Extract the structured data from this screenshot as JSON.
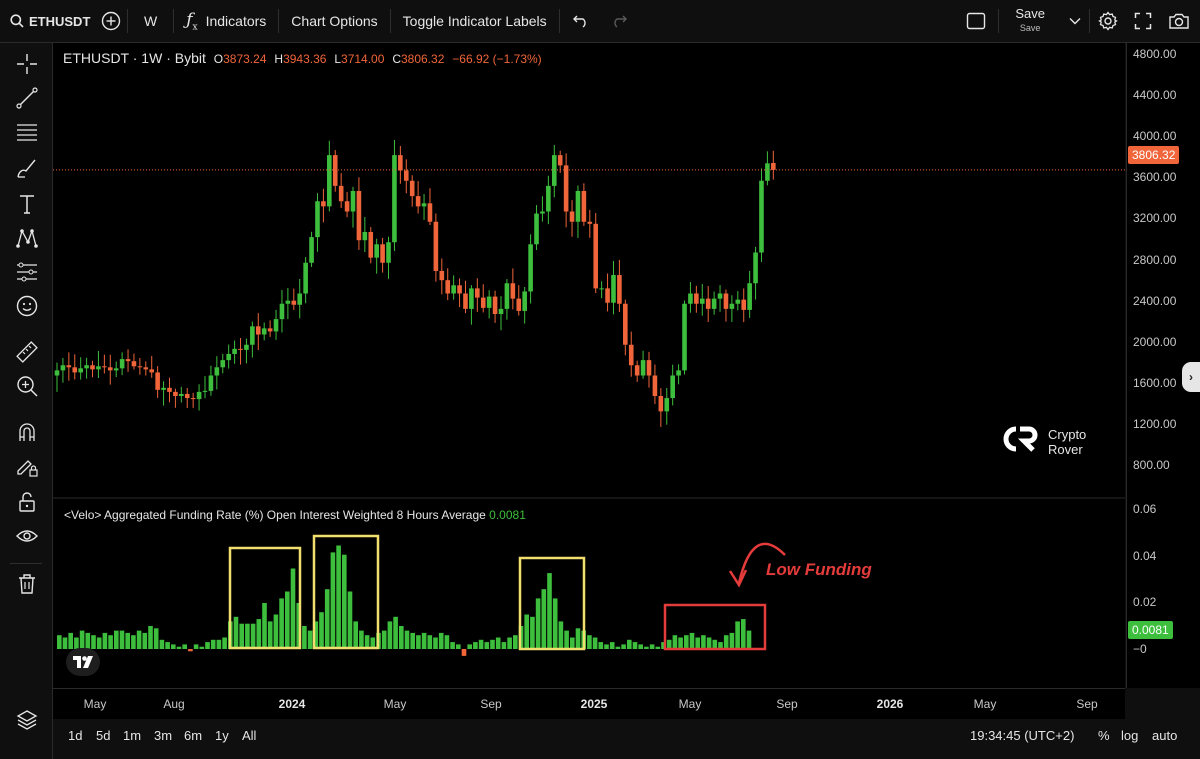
{
  "toolbar": {
    "symbol": "ETHUSDT",
    "interval": "W",
    "indicators_label": "Indicators",
    "chart_options_label": "Chart Options",
    "toggle_labels_label": "Toggle Indicator Labels",
    "save_label": "Save",
    "save_sub": "Save"
  },
  "legend": {
    "title": "ETHUSDT · 1W · Bybit",
    "o_label": "O",
    "o": "3873.24",
    "h_label": "H",
    "h": "3943.36",
    "l_label": "L",
    "l": "3714.00",
    "c_label": "C",
    "c": "3806.32",
    "change": "−66.92 (−1.73%)"
  },
  "indicator": {
    "label": "<Velo> Aggregated Funding Rate (%) Open Interest Weighted 8 Hours Average",
    "value": "0.0081"
  },
  "price_axis": {
    "ticks": [
      "4800.00",
      "4400.00",
      "4000.00",
      "3600.00",
      "3200.00",
      "2800.00",
      "2400.00",
      "2000.00",
      "1600.00",
      "1200.00",
      "800.00"
    ],
    "current_price": "3806.32",
    "ind_ticks": [
      "0.06",
      "0.04",
      "0.02",
      "−0"
    ],
    "ind_current": "0.0081"
  },
  "time_axis": {
    "labels": [
      "May",
      "Aug",
      "2024",
      "May",
      "Sep",
      "2025",
      "May",
      "Sep",
      "2026",
      "May",
      "Sep"
    ]
  },
  "bottom": {
    "ranges": [
      "1d",
      "5d",
      "1m",
      "3m",
      "6m",
      "1y",
      "All"
    ],
    "clock": "19:34:45 (UTC+2)",
    "percent": "%",
    "log": "log",
    "auto": "auto"
  },
  "watermark": {
    "line1": "Crypto",
    "line2": "Rover"
  },
  "annotation": "Low Funding",
  "colors": {
    "up": "#3dbf3d",
    "down": "#f0653a",
    "highlight": "#f2de6e",
    "annotation": "#e43b3b"
  },
  "chart_data": [
    {
      "type": "candlestick",
      "title": "ETHUSDT · 1W · Bybit",
      "ylim": [
        800,
        4800
      ],
      "x_range": [
        "2023-04",
        "2026-10"
      ],
      "closes": [
        1850,
        1900,
        1880,
        1830,
        1870,
        1900,
        1860,
        1890,
        1880,
        1850,
        1870,
        1960,
        1940,
        1890,
        1880,
        1860,
        1830,
        1660,
        1680,
        1640,
        1600,
        1620,
        1580,
        1570,
        1640,
        1650,
        1800,
        1880,
        1950,
        2010,
        2060,
        2050,
        2100,
        2280,
        2200,
        2260,
        2230,
        2350,
        2500,
        2530,
        2490,
        2600,
        2900,
        3150,
        3500,
        3450,
        3950,
        3650,
        3500,
        3400,
        3600,
        3120,
        3200,
        2950,
        3080,
        2900,
        3100,
        3950,
        3800,
        3700,
        3550,
        3450,
        3480,
        3300,
        2820,
        2730,
        2600,
        2680,
        2600,
        2450,
        2650,
        2560,
        2460,
        2570,
        2400,
        2450,
        2700,
        2550,
        2430,
        2620,
        3080,
        3380,
        3400,
        3650,
        3950,
        3850,
        3400,
        3300,
        3600,
        3300,
        3280,
        2650,
        2650,
        2510,
        2780,
        2500,
        2100,
        1900,
        1800,
        1950,
        1800,
        1600,
        1450,
        1580,
        1800,
        1850,
        2500,
        2600,
        2500,
        2550,
        2450,
        2550,
        2600,
        2450,
        2500,
        2540,
        2440,
        2700,
        3000,
        3700,
        3870,
        3806
      ],
      "last": {
        "open": 3873.24,
        "high": 3943.36,
        "low": 3714.0,
        "close": 3806.32,
        "change": -66.92,
        "change_pct": -1.73
      }
    },
    {
      "type": "bar",
      "title": "<Velo> Aggregated Funding Rate (%) Open Interest Weighted 8 Hours Average",
      "ylim": [
        -0.005,
        0.06
      ],
      "values": [
        0.006,
        0.005,
        0.007,
        0.005,
        0.008,
        0.007,
        0.006,
        0.005,
        0.007,
        0.006,
        0.008,
        0.008,
        0.007,
        0.006,
        0.008,
        0.007,
        0.01,
        0.009,
        0.004,
        0.003,
        0.002,
        0.001,
        0.002,
        -0.001,
        0.002,
        0.001,
        0.003,
        0.004,
        0.004,
        0.005,
        0.012,
        0.014,
        0.011,
        0.011,
        0.011,
        0.013,
        0.02,
        0.012,
        0.015,
        0.022,
        0.025,
        0.035,
        0.02,
        0.01,
        0.008,
        0.012,
        0.016,
        0.026,
        0.042,
        0.045,
        0.041,
        0.025,
        0.012,
        0.008,
        0.006,
        0.005,
        0.007,
        0.008,
        0.012,
        0.014,
        0.01,
        0.008,
        0.007,
        0.006,
        0.007,
        0.006,
        0.005,
        0.007,
        0.006,
        0.003,
        0.002,
        -0.003,
        0.002,
        0.003,
        0.004,
        0.003,
        0.004,
        0.005,
        0.003,
        0.005,
        0.006,
        0.01,
        0.015,
        0.014,
        0.022,
        0.026,
        0.033,
        0.022,
        0.012,
        0.008,
        0.005,
        0.009,
        0.008,
        0.006,
        0.005,
        0.003,
        0.002,
        0.003,
        0.001,
        0.002,
        0.004,
        0.003,
        0.002,
        0.001,
        0.002,
        0.001,
        0.003,
        0.004,
        0.006,
        0.005,
        0.006,
        0.007,
        0.005,
        0.006,
        0.005,
        0.004,
        0.003,
        0.006,
        0.007,
        0.012,
        0.013,
        0.008
      ]
    }
  ]
}
